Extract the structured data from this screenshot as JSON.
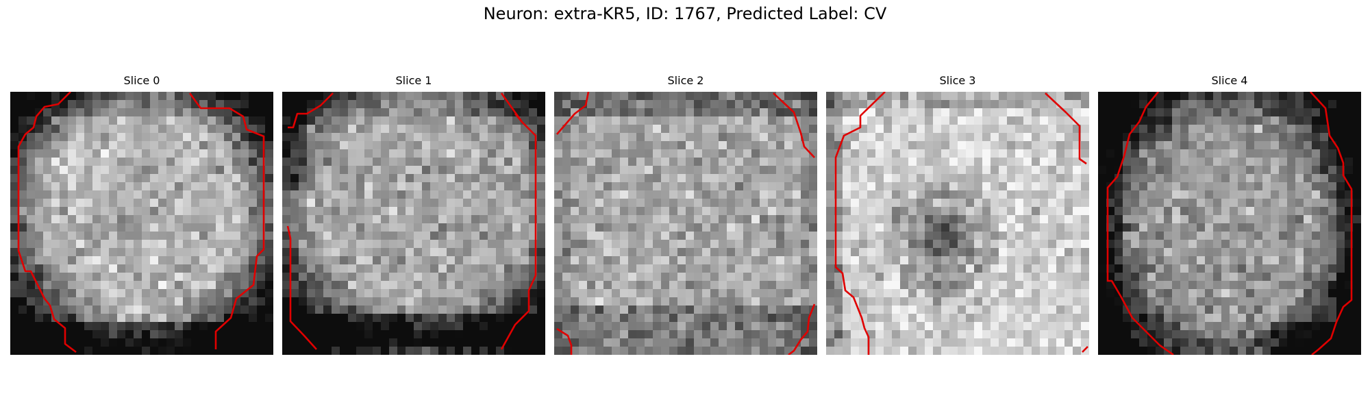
{
  "figure": {
    "title": "Neuron: extra-KR5, ID: 1767, Predicted Label: CV",
    "contour_color": "#e00000",
    "colormap": "grayscale",
    "slices": [
      {
        "label": "Slice 0"
      },
      {
        "label": "Slice 1"
      },
      {
        "label": "Slice 2"
      },
      {
        "label": "Slice 3"
      },
      {
        "label": "Slice 4"
      }
    ]
  }
}
